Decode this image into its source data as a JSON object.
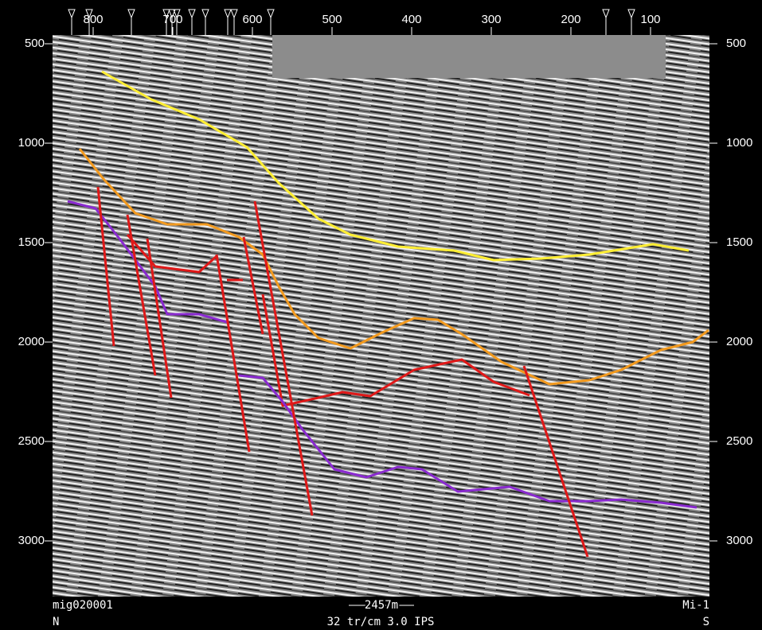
{
  "chart_data": {
    "type": "line",
    "xlim": [
      851,
      26
    ],
    "ylim": [
      456,
      3280
    ],
    "xticks": [
      800,
      700,
      600,
      500,
      400,
      300,
      200,
      100
    ],
    "yticks": [
      500,
      1000,
      1500,
      2000,
      2500,
      3000
    ],
    "markers": [
      827,
      805,
      752,
      708,
      701,
      695,
      676,
      659,
      631,
      623,
      577,
      156,
      124
    ],
    "series": [
      {
        "color": "#ffee33",
        "x": [
          789,
          727,
          667,
          607,
          567,
          517,
          477,
          417,
          347,
          297,
          237,
          177,
          97,
          52
        ],
        "values": [
          640,
          780,
          880,
          1020,
          1200,
          1380,
          1460,
          1520,
          1540,
          1588,
          1580,
          1560,
          1508,
          1540
        ]
      },
      {
        "color": "#f39a1e",
        "x": [
          817,
          787,
          747,
          707,
          657,
          617,
          587,
          567,
          547,
          517,
          477,
          437,
          397,
          367,
          337,
          287,
          227,
          177,
          137,
          87,
          47,
          27
        ],
        "values": [
          1028,
          1180,
          1352,
          1408,
          1408,
          1472,
          1560,
          1720,
          1860,
          1980,
          2032,
          1952,
          1880,
          1888,
          1960,
          2100,
          2212,
          2192,
          2140,
          2040,
          2000,
          1940
        ]
      },
      {
        "color": "#e01818",
        "x": [
          757,
          722,
          667,
          645,
          640,
          632,
          612,
          605,
          587,
          562,
          517,
          487,
          452,
          397,
          337,
          297,
          252
        ],
        "values": [
          1460,
          1620,
          1648,
          1568,
          null,
          1688,
          1688,
          null,
          1760,
          2320,
          2280,
          2252,
          2272,
          2140,
          2088,
          2200,
          2268
        ]
      },
      {
        "color": "#8a2ad0",
        "x": [
          832,
          797,
          767,
          722,
          707,
          667,
          632,
          625,
          617,
          587,
          562,
          537,
          497,
          457,
          417,
          387,
          342,
          277,
          227,
          177,
          137,
          87,
          42
        ],
        "values": [
          1292,
          1328,
          1480,
          1720,
          1860,
          1860,
          1900,
          null,
          2168,
          2180,
          2300,
          2440,
          2640,
          2680,
          2628,
          2640,
          2752,
          2728,
          2800,
          2800,
          2792,
          2808,
          2832
        ]
      }
    ],
    "faults": [
      {
        "color": "#e01818",
        "x": [
          794,
          774
        ],
        "values": [
          1220,
          2020
        ]
      },
      {
        "color": "#e01818",
        "x": [
          757,
          722
        ],
        "values": [
          1360,
          2168
        ]
      },
      {
        "color": "#e01818",
        "x": [
          732,
          702
        ],
        "values": [
          1480,
          2280
        ]
      },
      {
        "color": "#e01818",
        "x": [
          645,
          604
        ],
        "values": [
          1560,
          2552
        ]
      },
      {
        "color": "#e01818",
        "x": [
          611,
          587
        ],
        "values": [
          1472,
          1960
        ]
      },
      {
        "color": "#e01818",
        "x": [
          597,
          525
        ],
        "values": [
          1292,
          2872
        ]
      },
      {
        "color": "#e01818",
        "x": [
          259,
          179
        ],
        "values": [
          2120,
          3080
        ]
      }
    ],
    "line_name": "mig020001",
    "well_name": "Mi-1",
    "left_end": "N",
    "right_end": "S",
    "display_info": "32 tr/cm 3.0 IPS",
    "scale_bar": "2457m"
  }
}
